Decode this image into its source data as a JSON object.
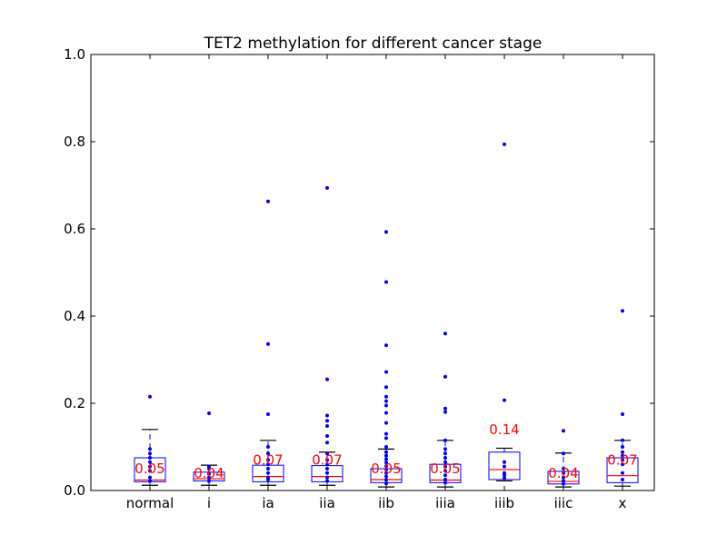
{
  "chart_data": {
    "type": "box",
    "title": "TET2 methylation for different cancer stage",
    "xlabel": "",
    "ylabel": "",
    "ylim": [
      0,
      1
    ],
    "yticks": [
      "0.0",
      "0.2",
      "0.4",
      "0.6",
      "0.8",
      "1.0"
    ],
    "categories": [
      "normal",
      "i",
      "ia",
      "iia",
      "iib",
      "iiia",
      "iiib",
      "iiic",
      "x"
    ],
    "mean_labels": [
      "0.05",
      "0.04",
      "0.07",
      "0.07",
      "0.05",
      "0.05",
      "0.14",
      "0.04",
      "0.07"
    ],
    "boxes": [
      {
        "min": 0.012,
        "q1": 0.02,
        "median": 0.024,
        "q3": 0.075,
        "max": 0.14
      },
      {
        "min": 0.012,
        "q1": 0.022,
        "median": 0.027,
        "q3": 0.042,
        "max": 0.058
      },
      {
        "min": 0.012,
        "q1": 0.02,
        "median": 0.032,
        "q3": 0.058,
        "max": 0.115
      },
      {
        "min": 0.012,
        "q1": 0.02,
        "median": 0.032,
        "q3": 0.057,
        "max": 0.088
      },
      {
        "min": 0.008,
        "q1": 0.018,
        "median": 0.025,
        "q3": 0.05,
        "max": 0.095
      },
      {
        "min": 0.008,
        "q1": 0.018,
        "median": 0.024,
        "q3": 0.06,
        "max": 0.115
      },
      {
        "min": 0.022,
        "q1": 0.025,
        "median": 0.048,
        "q3": 0.088,
        "max": 0.097
      },
      {
        "min": 0.008,
        "q1": 0.015,
        "median": 0.021,
        "q3": 0.044,
        "max": 0.086
      },
      {
        "min": 0.01,
        "q1": 0.018,
        "median": 0.034,
        "q3": 0.075,
        "max": 0.115
      }
    ],
    "points": [
      [
        0.215,
        0.095,
        0.085,
        0.075,
        0.065,
        0.055,
        0.045,
        0.03,
        0.022
      ],
      [
        0.177,
        0.055,
        0.05,
        0.038,
        0.03,
        0.022
      ],
      [
        0.663,
        0.336,
        0.175,
        0.1,
        0.085,
        0.07,
        0.06,
        0.05,
        0.04,
        0.03,
        0.025
      ],
      [
        0.694,
        0.255,
        0.172,
        0.16,
        0.148,
        0.125,
        0.11,
        0.085,
        0.07,
        0.06,
        0.05,
        0.04,
        0.03,
        0.022
      ],
      [
        0.593,
        0.478,
        0.333,
        0.272,
        0.237,
        0.215,
        0.205,
        0.195,
        0.178,
        0.155,
        0.13,
        0.12,
        0.1,
        0.088,
        0.08,
        0.072,
        0.064,
        0.056,
        0.048,
        0.04,
        0.032,
        0.024,
        0.016
      ],
      [
        0.36,
        0.261,
        0.188,
        0.18,
        0.115,
        0.095,
        0.085,
        0.075,
        0.065,
        0.055,
        0.045,
        0.035,
        0.025,
        0.018
      ],
      [
        0.794,
        0.207,
        0.065,
        0.055,
        0.04,
        0.035,
        0.028
      ],
      [
        0.137,
        0.085,
        0.05,
        0.04,
        0.03,
        0.022,
        0.015
      ],
      [
        0.412,
        0.175,
        0.115,
        0.1,
        0.088,
        0.08,
        0.07,
        0.06,
        0.04,
        0.025
      ]
    ],
    "colors": {
      "box": "#0000ff",
      "median": "#ff0000",
      "point": "#0000ff",
      "label": "#ff0000",
      "whisker": "#000000"
    }
  }
}
